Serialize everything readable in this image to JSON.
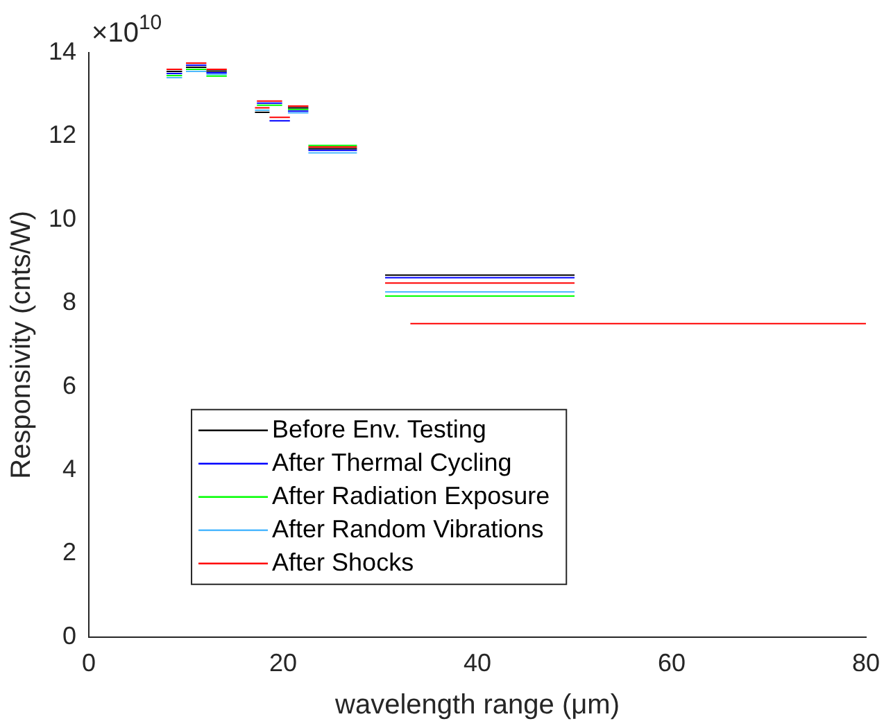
{
  "chart_data": {
    "type": "line",
    "xlabel": "wavelength range (μm)",
    "ylabel": "Responsivity (cnts/W)",
    "annotations": [
      "×10$^{10}$"
    ],
    "xlim": [
      0,
      80
    ],
    "xticks": [
      0,
      20,
      40,
      60,
      80
    ],
    "ylim": [
      0,
      14
    ],
    "yticks": [
      0,
      2,
      4,
      6,
      8,
      10,
      12,
      14
    ],
    "grid": false,
    "legend": "bottom left",
    "marker": "none",
    "line_style": "solid",
    "series": [
      {
        "name": "Before Env. Testing",
        "color": "#000000",
        "x": [
          8,
          9.6,
          null,
          10,
          12.1,
          null,
          12.1,
          14.2,
          null,
          17.1,
          18.6,
          null,
          20.5,
          22.6,
          null,
          22.6,
          27.6,
          null,
          30.5,
          50
        ],
        "values": [
          13.55,
          13.55,
          null,
          13.65,
          13.65,
          null,
          13.56,
          13.56,
          null,
          12.57,
          12.57,
          null,
          12.68,
          12.68,
          null,
          11.7,
          11.7,
          null,
          8.67,
          8.67
        ]
      },
      {
        "name": "After Thermal Cycling",
        "color": "#0000ff",
        "x": [
          8,
          9.6,
          null,
          10,
          12.1,
          null,
          12.1,
          14.2,
          null,
          17.3,
          19.9,
          null,
          18.6,
          20.7,
          null,
          20.5,
          22.6,
          null,
          22.6,
          27.6,
          null,
          30.5,
          50
        ],
        "values": [
          13.5,
          13.5,
          null,
          13.7,
          13.7,
          null,
          13.52,
          13.52,
          null,
          12.79,
          12.79,
          null,
          12.37,
          12.37,
          null,
          12.6,
          12.6,
          null,
          11.66,
          11.66,
          null,
          8.61,
          8.61
        ]
      },
      {
        "name": "After Radiation Exposure",
        "color": "#00ff00",
        "x": [
          8,
          9.6,
          null,
          10,
          12.1,
          null,
          12.1,
          14.2,
          null,
          17.3,
          19.9,
          null,
          20.5,
          22.6,
          null,
          22.6,
          27.6,
          null,
          30.5,
          50
        ],
        "values": [
          13.45,
          13.45,
          null,
          13.6,
          13.6,
          null,
          13.44,
          13.44,
          null,
          12.74,
          12.74,
          null,
          12.64,
          12.64,
          null,
          11.78,
          11.78,
          null,
          8.17,
          8.17
        ]
      },
      {
        "name": "After Random Vibrations",
        "color": "#4db8ff",
        "x": [
          8,
          9.6,
          null,
          10,
          12.1,
          null,
          12.1,
          14.2,
          null,
          17.1,
          18.6,
          null,
          20.5,
          22.6,
          null,
          22.6,
          27.6,
          null,
          30.5,
          50
        ],
        "values": [
          13.4,
          13.4,
          null,
          13.55,
          13.55,
          null,
          13.48,
          13.48,
          null,
          12.62,
          12.62,
          null,
          12.56,
          12.56,
          null,
          11.6,
          11.6,
          null,
          8.27,
          8.27
        ]
      },
      {
        "name": "After Shocks",
        "color": "#ff0000",
        "x": [
          8,
          9.6,
          null,
          10,
          12.1,
          null,
          12.1,
          14.2,
          null,
          17.3,
          19.9,
          null,
          17.1,
          18.6,
          null,
          18.6,
          20.7,
          null,
          20.5,
          22.6,
          null,
          22.6,
          27.6,
          null,
          30.5,
          50,
          null,
          33.1,
          80
        ],
        "values": [
          13.6,
          13.6,
          null,
          13.75,
          13.75,
          null,
          13.6,
          13.6,
          null,
          12.84,
          12.84,
          null,
          12.68,
          12.68,
          null,
          12.45,
          12.45,
          null,
          12.72,
          12.72,
          null,
          11.74,
          11.74,
          null,
          8.48,
          8.48,
          null,
          7.51,
          7.51
        ]
      }
    ]
  }
}
